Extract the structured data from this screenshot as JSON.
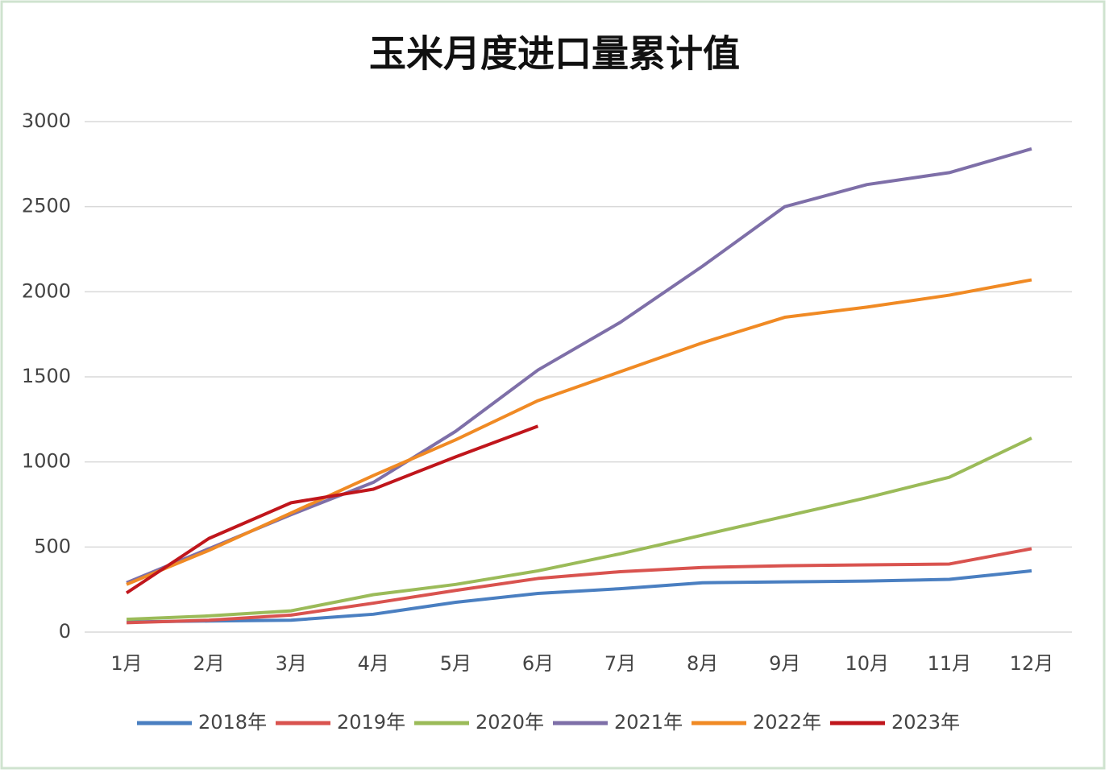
{
  "chart_data": {
    "type": "line",
    "title": "玉米月度进口量累计值",
    "categories": [
      "1月",
      "2月",
      "3月",
      "4月",
      "5月",
      "6月",
      "7月",
      "8月",
      "9月",
      "10月",
      "11月",
      "12月"
    ],
    "ylim": [
      0,
      3000
    ],
    "yticks": [
      0,
      500,
      1000,
      1500,
      2000,
      2500,
      3000
    ],
    "grid": true,
    "legend": "bottom",
    "series": [
      {
        "name": "2018年",
        "color": "#4a7fc1",
        "values": [
          60,
          65,
          70,
          105,
          175,
          227,
          255,
          290,
          295,
          300,
          310,
          360
        ]
      },
      {
        "name": "2019年",
        "color": "#d9534f",
        "values": [
          55,
          70,
          100,
          170,
          245,
          315,
          355,
          380,
          390,
          395,
          400,
          490
        ]
      },
      {
        "name": "2020年",
        "color": "#9bbb59",
        "values": [
          75,
          95,
          125,
          220,
          280,
          360,
          460,
          570,
          680,
          790,
          910,
          1140
        ]
      },
      {
        "name": "2021年",
        "color": "#7e6fa8",
        "values": [
          290,
          490,
          690,
          880,
          1180,
          1540,
          1820,
          2150,
          2500,
          2630,
          2700,
          2840
        ]
      },
      {
        "name": "2022年",
        "color": "#f08a24",
        "values": [
          280,
          480,
          700,
          920,
          1130,
          1360,
          1530,
          1700,
          1850,
          1910,
          1980,
          2070
        ]
      },
      {
        "name": "2023年",
        "color": "#c0161c",
        "values": [
          230,
          550,
          760,
          840,
          1030,
          1210,
          null,
          null,
          null,
          null,
          null,
          null
        ]
      }
    ]
  }
}
